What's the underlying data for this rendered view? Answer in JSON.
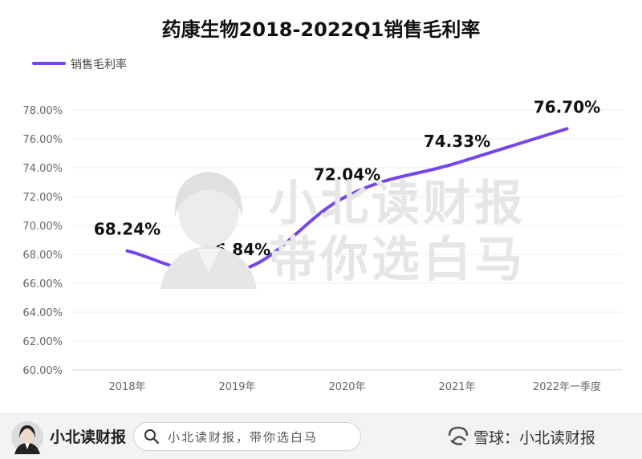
{
  "chart_data": {
    "type": "line",
    "title": "药康生物2018-2022Q1销售毛利率",
    "categories": [
      "2018年",
      "2019年",
      "2020年",
      "2021年",
      "2022年一季度"
    ],
    "series": [
      {
        "name": "销售毛利率",
        "values": [
          68.24,
          66.84,
          72.04,
          74.33,
          76.7
        ],
        "labels": [
          "68.24%",
          "66.84%",
          "72.04%",
          "74.33%",
          "76.70%"
        ],
        "color": "#7445f0"
      }
    ],
    "ylim": [
      60,
      78
    ],
    "yticks": [
      "60.00%",
      "62.00%",
      "64.00%",
      "66.00%",
      "68.00%",
      "70.00%",
      "72.00%",
      "74.00%",
      "76.00%",
      "78.00%"
    ],
    "grid": true,
    "legend": "top-left",
    "smooth": true
  },
  "watermark": {
    "line1": "小北读财报",
    "line2": "带你选白马"
  },
  "footer": {
    "brand": "小北读财报",
    "search_text": "小北读财报，带你选白马",
    "source": "雪球：小北读财报"
  }
}
